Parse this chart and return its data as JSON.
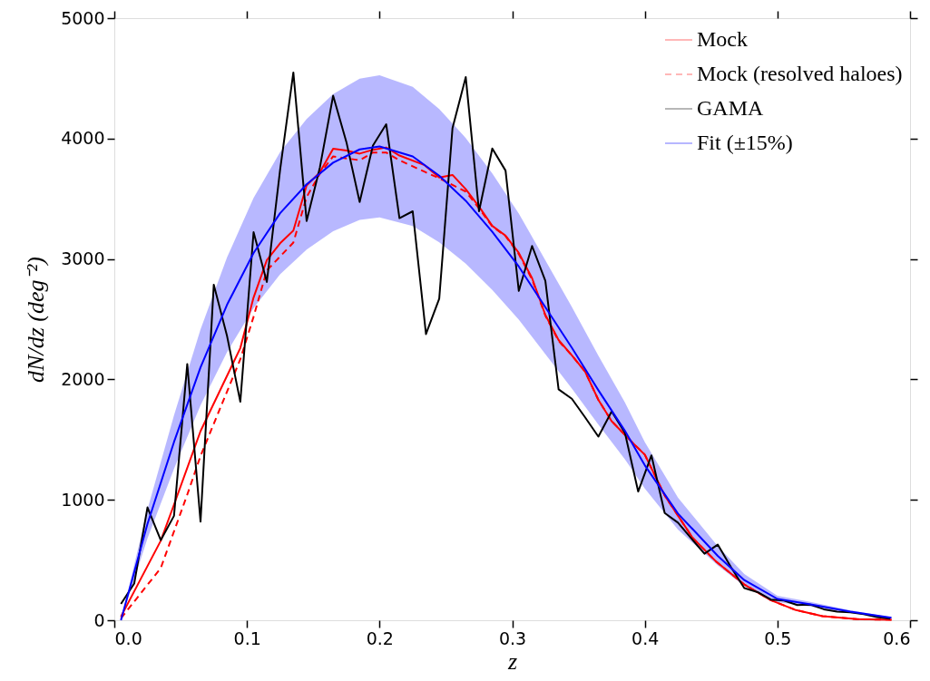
{
  "chart_data": {
    "type": "line",
    "xlabel": "z",
    "ylabel": "dN/dz (deg⁻²)",
    "xlim": [
      0,
      0.6
    ],
    "xticks": [
      {
        "value": 0,
        "label": "0.0"
      },
      0.1,
      0.2,
      0.3,
      0.4,
      0.5,
      0.6
    ],
    "ylim": [
      0,
      5000
    ],
    "yticks": [
      0,
      1000,
      2000,
      3000,
      4000,
      5000
    ],
    "grid": false,
    "legend": "top right",
    "marker": "none",
    "series": [
      {
        "name": "Mock",
        "color": "#ff0000",
        "line_style": "solid",
        "x": [
          0.005,
          0.015,
          0.035,
          0.045,
          0.065,
          0.095,
          0.105,
          0.115,
          0.125,
          0.135,
          0.145,
          0.155,
          0.165,
          0.175,
          0.185,
          0.195,
          0.205,
          0.215,
          0.234,
          0.245,
          0.255,
          0.265,
          0.275,
          0.285,
          0.295,
          0.305,
          0.315,
          0.325,
          0.335,
          0.345,
          0.355,
          0.365,
          0.375,
          0.392,
          0.4,
          0.415,
          0.436,
          0.454,
          0.475,
          0.495,
          0.514,
          0.534,
          0.56,
          0.586
        ],
        "values": [
          30,
          240,
          660,
          960,
          1570,
          2260,
          2680,
          2990,
          3130,
          3236,
          3610,
          3720,
          3916,
          3900,
          3875,
          3907,
          3926,
          3859,
          3779,
          3676,
          3698,
          3580,
          3435,
          3275,
          3194,
          3050,
          2841,
          2536,
          2327,
          2199,
          2064,
          1830,
          1653,
          1461,
          1375,
          1036,
          685,
          485,
          297,
          167,
          84,
          34,
          9,
          4
        ]
      },
      {
        "name": "Mock (resolved haloes)",
        "color": "#ff0000",
        "line_style": "dashed",
        "x": [
          0.005,
          0.035,
          0.055,
          0.065,
          0.095,
          0.105,
          0.115,
          0.135,
          0.145,
          0.155,
          0.165,
          0.185,
          0.195,
          0.205,
          0.215,
          0.234,
          0.245,
          0.265,
          0.275,
          0.285,
          0.295,
          0.305,
          0.315,
          0.325,
          0.335,
          0.345,
          0.355,
          0.365,
          0.375,
          0.392,
          0.4,
          0.415,
          0.436,
          0.454,
          0.475,
          0.495,
          0.514,
          0.534,
          0.56,
          0.586
        ],
        "values": [
          16,
          433,
          1043,
          1364,
          2167,
          2520,
          2905,
          3136,
          3515,
          3708,
          3852,
          3820,
          3884,
          3884,
          3820,
          3724,
          3670,
          3560,
          3420,
          3270,
          3190,
          3040,
          2830,
          2530,
          2320,
          2199,
          2064,
          1830,
          1653,
          1461,
          1375,
          1036,
          685,
          485,
          297,
          167,
          84,
          34,
          9,
          4
        ]
      },
      {
        "name": "GAMA",
        "color": "#000000",
        "line_style": "solid",
        "x": [
          0.005,
          0.015,
          0.025,
          0.035,
          0.045,
          0.055,
          0.065,
          0.075,
          0.085,
          0.095,
          0.105,
          0.115,
          0.125,
          0.135,
          0.145,
          0.155,
          0.165,
          0.175,
          0.185,
          0.195,
          0.205,
          0.215,
          0.225,
          0.235,
          0.245,
          0.255,
          0.265,
          0.275,
          0.285,
          0.295,
          0.305,
          0.315,
          0.325,
          0.335,
          0.345,
          0.355,
          0.365,
          0.375,
          0.385,
          0.395,
          0.405,
          0.415,
          0.425,
          0.435,
          0.445,
          0.455,
          0.465,
          0.475,
          0.485,
          0.495,
          0.505,
          0.515,
          0.525,
          0.535,
          0.545,
          0.555,
          0.565,
          0.575,
          0.585
        ],
        "values": [
          135,
          305,
          937,
          665,
          867,
          2128,
          819,
          2787,
          2360,
          1814,
          3223,
          2809,
          3740,
          4549,
          3316,
          3760,
          4356,
          3971,
          3473,
          3942,
          4119,
          3339,
          3396,
          2376,
          2671,
          4087,
          4510,
          3396,
          3917,
          3734,
          2735,
          3108,
          2819,
          1917,
          1839,
          1685,
          1525,
          1734,
          1557,
          1069,
          1369,
          890,
          810,
          680,
          552,
          628,
          440,
          267,
          234,
          172,
          164,
          126,
          129,
          91,
          71,
          66,
          51,
          26,
          14
        ]
      },
      {
        "name": "Fit (±15%)",
        "color": "#0000ff",
        "line_style": "solid",
        "x": [
          0.005,
          0.025,
          0.045,
          0.065,
          0.085,
          0.105,
          0.125,
          0.145,
          0.165,
          0.185,
          0.2,
          0.225,
          0.245,
          0.265,
          0.285,
          0.305,
          0.325,
          0.345,
          0.365,
          0.385,
          0.4,
          0.425,
          0.455,
          0.475,
          0.5,
          0.524,
          0.555,
          0.586
        ],
        "values": [
          0,
          800,
          1480,
          2100,
          2620,
          3050,
          3380,
          3620,
          3800,
          3910,
          3935,
          3852,
          3692,
          3483,
          3226,
          2937,
          2600,
          2263,
          1910,
          1573,
          1287,
          886,
          535,
          334,
          177,
          134,
          71,
          21
        ],
        "lower": [
          0,
          680,
          1258,
          1785,
          2227,
          2593,
          2873,
          3077,
          3230,
          3324,
          3345,
          3274,
          3138,
          2961,
          2742,
          2496,
          2210,
          1924,
          1624,
          1337,
          1094,
          753,
          455,
          284,
          150,
          114,
          60,
          18
        ],
        "upper": [
          0,
          920,
          1702,
          2415,
          3013,
          3508,
          3887,
          4163,
          4370,
          4497,
          4525,
          4430,
          4246,
          4005,
          3710,
          3378,
          2990,
          2602,
          2197,
          1809,
          1480,
          1019,
          615,
          384,
          204,
          154,
          82,
          24
        ]
      }
    ]
  }
}
